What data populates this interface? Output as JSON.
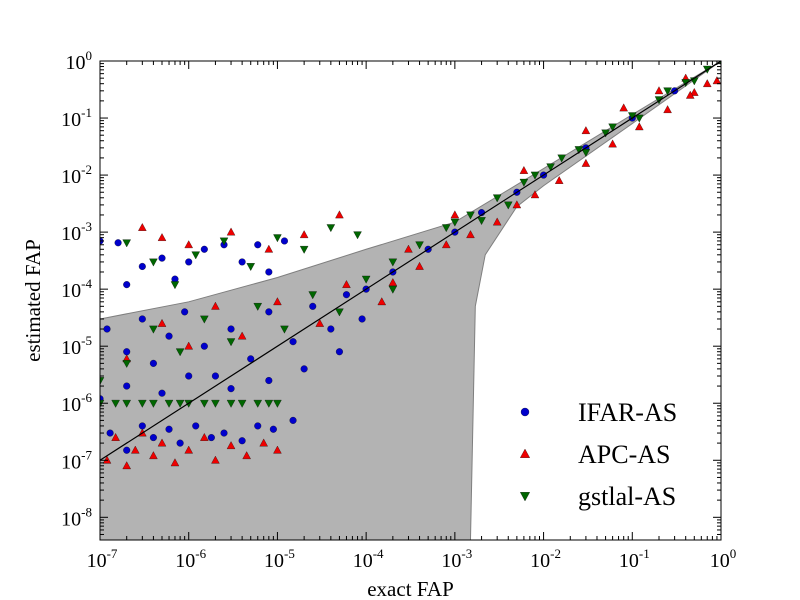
{
  "chart_data": {
    "type": "scatter",
    "xlabel": "exact FAP",
    "ylabel": "estimated FAP",
    "xscale": "log",
    "yscale": "log",
    "xlim": [
      1e-07,
      1
    ],
    "ylim": [
      4e-09,
      1
    ],
    "x_ticks": [
      {
        "base": "10",
        "exp": "-7",
        "value": 1e-07
      },
      {
        "base": "10",
        "exp": "-6",
        "value": 1e-06
      },
      {
        "base": "10",
        "exp": "-5",
        "value": 1e-05
      },
      {
        "base": "10",
        "exp": "-4",
        "value": 0.0001
      },
      {
        "base": "10",
        "exp": "-3",
        "value": 0.001
      },
      {
        "base": "10",
        "exp": "-2",
        "value": 0.01
      },
      {
        "base": "10",
        "exp": "-1",
        "value": 0.1
      },
      {
        "base": "10",
        "exp": "0",
        "value": 1
      }
    ],
    "y_ticks": [
      {
        "base": "10",
        "exp": "-8",
        "value": 1e-08
      },
      {
        "base": "10",
        "exp": "-7",
        "value": 1e-07
      },
      {
        "base": "10",
        "exp": "-6",
        "value": 1e-06
      },
      {
        "base": "10",
        "exp": "-5",
        "value": 1e-05
      },
      {
        "base": "10",
        "exp": "-4",
        "value": 0.0001
      },
      {
        "base": "10",
        "exp": "-3",
        "value": 0.001
      },
      {
        "base": "10",
        "exp": "-2",
        "value": 0.01
      },
      {
        "base": "10",
        "exp": "-1",
        "value": 0.1
      },
      {
        "base": "10",
        "exp": "0",
        "value": 1
      }
    ],
    "grid": false,
    "legend_position": "lower-right",
    "reference_line": {
      "x": [
        1e-07,
        1
      ],
      "y": [
        1e-07,
        1
      ],
      "color": "#000000"
    },
    "shaded_region": {
      "color": "#b3b3b3",
      "edge_color": "#7f7f7f",
      "upper": [
        [
          1e-07,
          3e-05
        ],
        [
          1e-06,
          6e-05
        ],
        [
          1e-05,
          0.00016
        ],
        [
          0.0001,
          0.0005
        ],
        [
          0.001,
          0.0015
        ],
        [
          0.01,
          0.013
        ],
        [
          0.1,
          0.115
        ],
        [
          1,
          1
        ]
      ],
      "lower": [
        [
          1e-07,
          4e-09
        ],
        [
          0.0015,
          4e-09
        ],
        [
          0.0017,
          5e-05
        ],
        [
          0.0022,
          0.0004
        ],
        [
          0.005,
          0.0028
        ],
        [
          0.01,
          0.0065
        ],
        [
          0.1,
          0.08
        ],
        [
          1,
          1
        ]
      ]
    },
    "series": [
      {
        "name": "IFAR-AS",
        "marker": "circle",
        "color": "#0000cc",
        "points": [
          [
            1e-07,
            0.0007
          ],
          [
            1.6e-07,
            0.00065
          ],
          [
            2e-07,
            0.00012
          ],
          [
            3e-07,
            0.00025
          ],
          [
            5e-07,
            0.00035
          ],
          [
            7e-07,
            0.00015
          ],
          [
            1e-06,
            0.0003
          ],
          [
            1.5e-06,
            0.0005
          ],
          [
            2.5e-06,
            0.0006
          ],
          [
            4e-06,
            0.0003
          ],
          [
            6e-06,
            0.0006
          ],
          [
            8e-06,
            0.0002
          ],
          [
            1.2e-05,
            0.0007
          ],
          [
            1.2e-07,
            2e-05
          ],
          [
            2e-07,
            8e-06
          ],
          [
            3e-07,
            3e-05
          ],
          [
            4e-07,
            5e-06
          ],
          [
            6e-07,
            1.5e-05
          ],
          [
            9e-07,
            4e-05
          ],
          [
            1.5e-06,
            1e-05
          ],
          [
            2e-06,
            3e-06
          ],
          [
            3e-06,
            2e-05
          ],
          [
            5e-06,
            6e-06
          ],
          [
            8e-06,
            4e-05
          ],
          [
            1.5e-05,
            1.2e-05
          ],
          [
            2.5e-05,
            5e-05
          ],
          [
            4e-05,
            2e-05
          ],
          [
            6e-05,
            8e-05
          ],
          [
            9e-05,
            3e-05
          ],
          [
            1.3e-07,
            3e-07
          ],
          [
            2e-07,
            1.5e-07
          ],
          [
            3e-07,
            4e-07
          ],
          [
            4e-07,
            2.5e-07
          ],
          [
            6e-07,
            3.5e-07
          ],
          [
            8e-07,
            2e-07
          ],
          [
            1.2e-06,
            4e-07
          ],
          [
            1.8e-06,
            2.5e-07
          ],
          [
            2.5e-06,
            3e-07
          ],
          [
            4e-06,
            2.2e-07
          ],
          [
            6e-06,
            4e-07
          ],
          [
            9e-06,
            3.5e-07
          ],
          [
            1.5e-05,
            5e-07
          ],
          [
            1e-07,
            1.2e-06
          ],
          [
            2e-07,
            2e-06
          ],
          [
            5e-07,
            1.5e-06
          ],
          [
            1e-06,
            3e-06
          ],
          [
            3e-06,
            1.8e-06
          ],
          [
            8e-06,
            2.5e-06
          ],
          [
            2e-05,
            4e-06
          ],
          [
            5e-05,
            8e-06
          ],
          [
            0.0001,
            0.0001
          ],
          [
            0.0002,
            0.0002
          ],
          [
            0.0005,
            0.0005
          ],
          [
            0.001,
            0.001
          ],
          [
            0.002,
            0.0022
          ],
          [
            0.005,
            0.005
          ],
          [
            0.01,
            0.01
          ],
          [
            0.03,
            0.03
          ],
          [
            0.1,
            0.1
          ],
          [
            0.3,
            0.3
          ]
        ]
      },
      {
        "name": "APC-AS",
        "marker": "triangle-up",
        "color": "#ee0000",
        "points": [
          [
            1.2e-07,
            1e-07
          ],
          [
            1.5e-07,
            2.5e-07
          ],
          [
            2e-07,
            8e-08
          ],
          [
            2.5e-07,
            1.5e-07
          ],
          [
            3e-07,
            3e-07
          ],
          [
            4e-07,
            1.2e-07
          ],
          [
            5e-07,
            2e-07
          ],
          [
            7e-07,
            9e-08
          ],
          [
            1e-06,
            1.5e-07
          ],
          [
            1.5e-06,
            2.5e-07
          ],
          [
            2e-06,
            1e-07
          ],
          [
            3e-06,
            1.8e-07
          ],
          [
            4.5e-06,
            1.2e-07
          ],
          [
            7e-06,
            2e-07
          ],
          [
            1e-05,
            1.5e-07
          ],
          [
            3e-07,
            0.0012
          ],
          [
            5e-07,
            0.0008
          ],
          [
            1e-06,
            0.0006
          ],
          [
            3e-06,
            0.001
          ],
          [
            8e-06,
            0.0005
          ],
          [
            2e-05,
            0.0009
          ],
          [
            5e-05,
            0.002
          ],
          [
            2e-07,
            6e-06
          ],
          [
            5e-07,
            2.5e-05
          ],
          [
            1e-06,
            1e-05
          ],
          [
            2e-06,
            5e-05
          ],
          [
            4e-06,
            1.5e-05
          ],
          [
            1e-05,
            6e-05
          ],
          [
            3e-05,
            2.5e-05
          ],
          [
            6e-05,
            0.00012
          ],
          [
            0.00015,
            6e-05
          ],
          [
            0.0002,
            0.00013
          ],
          [
            0.0004,
            0.00025
          ],
          [
            0.0008,
            0.0006
          ],
          [
            0.0015,
            0.0009
          ],
          [
            0.003,
            0.0015
          ],
          [
            0.005,
            0.003
          ],
          [
            0.008,
            0.0045
          ],
          [
            0.015,
            0.008
          ],
          [
            0.03,
            0.016
          ],
          [
            0.06,
            0.035
          ],
          [
            0.12,
            0.07
          ],
          [
            0.25,
            0.14
          ],
          [
            0.5,
            0.28
          ],
          [
            0.9,
            0.45
          ],
          [
            0.006,
            0.012
          ],
          [
            0.03,
            0.06
          ],
          [
            0.08,
            0.15
          ],
          [
            0.2,
            0.3
          ],
          [
            0.4,
            0.5
          ],
          [
            0.45,
            0.25
          ],
          [
            0.7,
            0.4
          ],
          [
            0.001,
            0.002
          ],
          [
            0.0003,
            0.0005
          ]
        ]
      },
      {
        "name": "gstlal-AS",
        "marker": "triangle-down",
        "color": "#006600",
        "points": [
          [
            1e-07,
            1e-06
          ],
          [
            1.5e-07,
            1e-06
          ],
          [
            2e-07,
            1e-06
          ],
          [
            3e-07,
            1e-06
          ],
          [
            4e-07,
            1e-06
          ],
          [
            6e-07,
            1e-06
          ],
          [
            8e-07,
            1e-06
          ],
          [
            1e-06,
            1e-06
          ],
          [
            1.5e-06,
            1e-06
          ],
          [
            2e-06,
            1e-06
          ],
          [
            3e-06,
            1e-06
          ],
          [
            4e-06,
            1e-06
          ],
          [
            6e-06,
            1e-06
          ],
          [
            8e-06,
            1e-06
          ],
          [
            1e-05,
            1e-06
          ],
          [
            1e-07,
            2.5e-06
          ],
          [
            2e-07,
            5e-06
          ],
          [
            4e-07,
            2e-05
          ],
          [
            8e-07,
            8e-06
          ],
          [
            1.5e-06,
            3e-05
          ],
          [
            3e-06,
            1.2e-05
          ],
          [
            6e-06,
            5e-05
          ],
          [
            1.2e-05,
            2e-05
          ],
          [
            2.5e-05,
            8e-05
          ],
          [
            5e-05,
            4e-05
          ],
          [
            0.0001,
            0.00015
          ],
          [
            0.0002,
            0.0001
          ],
          [
            2e-07,
            0.00065
          ],
          [
            4e-07,
            0.0003
          ],
          [
            7e-07,
            0.00012
          ],
          [
            1.2e-06,
            0.0004
          ],
          [
            2.5e-06,
            0.0007
          ],
          [
            5e-06,
            0.00025
          ],
          [
            1e-05,
            0.0008
          ],
          [
            2e-05,
            0.0005
          ],
          [
            4e-05,
            0.0012
          ],
          [
            8e-05,
            0.0009
          ],
          [
            0.0002,
            0.0003
          ],
          [
            0.0004,
            0.0006
          ],
          [
            0.0008,
            0.0012
          ],
          [
            0.0015,
            0.002
          ],
          [
            0.003,
            0.004
          ],
          [
            0.006,
            0.0075
          ],
          [
            0.012,
            0.014
          ],
          [
            0.025,
            0.028
          ],
          [
            0.05,
            0.055
          ],
          [
            0.1,
            0.11
          ],
          [
            0.2,
            0.21
          ],
          [
            0.4,
            0.42
          ],
          [
            0.7,
            0.72
          ],
          [
            1,
            1
          ],
          [
            0.001,
            0.0015
          ],
          [
            0.002,
            0.0016
          ],
          [
            0.004,
            0.003
          ],
          [
            0.008,
            0.01
          ],
          [
            0.016,
            0.02
          ],
          [
            0.03,
            0.025
          ],
          [
            0.06,
            0.07
          ],
          [
            0.12,
            0.1
          ],
          [
            0.25,
            0.3
          ],
          [
            0.5,
            0.45
          ]
        ]
      }
    ]
  }
}
